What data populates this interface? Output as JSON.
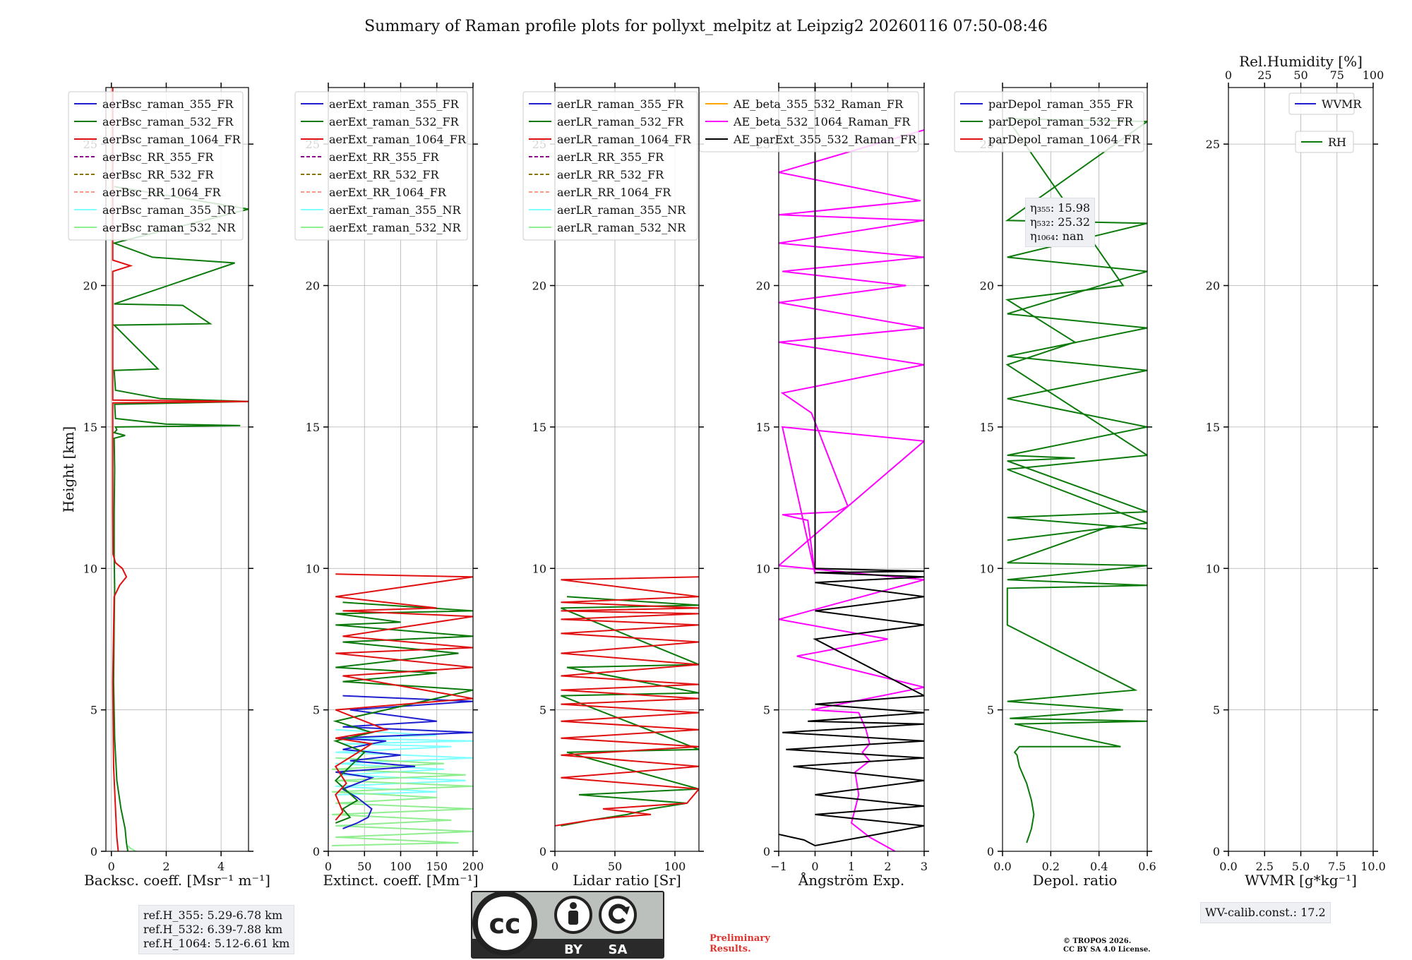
{
  "title": "Summary of Raman profile plots for pollyxt_melpitz at Leipzig2 20260116 07:50-08:46",
  "colors": {
    "blue": "#1f1fd0",
    "green": "#0b7a0b",
    "red": "#e01010",
    "purple": "#8b008b",
    "olive": "#8b7500",
    "salmon": "#ff9980",
    "cyan": "#7fffff",
    "lightgreen": "#90ee90",
    "orange": "#ffa500",
    "magenta": "#ff00ff",
    "black": "#000000"
  },
  "chart_data": [
    {
      "type": "line",
      "id": "bsc",
      "xlabel": "Backsc. coeff. [Msr⁻¹ m⁻¹]",
      "ylabel": "Height [km]",
      "xlim": [
        -0.2,
        5
      ],
      "ylim": [
        0,
        27
      ],
      "xticks": [
        0,
        2,
        4
      ],
      "xticklabels": [
        "0",
        "2",
        "4"
      ],
      "yticks": [
        0,
        5,
        10,
        15,
        20,
        25
      ],
      "yticklabels": [
        "0",
        "5",
        "10",
        "15",
        "20",
        "25"
      ],
      "legend": [
        "aerBsc_raman_355_FR",
        "aerBsc_raman_532_FR",
        "aerBsc_raman_1064_FR",
        "aerBsc_RR_355_FR",
        "aerBsc_RR_532_FR",
        "aerBsc_RR_1064_FR",
        "aerBsc_raman_355_NR",
        "aerBsc_raman_532_NR"
      ],
      "series": [
        {
          "name": "aerBsc_raman_532_FR",
          "style": "solid",
          "color": "green",
          "x": [
            0.6,
            0.55,
            0.5,
            0.35,
            0.2,
            0.12,
            0.08,
            0.1,
            0.12,
            0.1,
            0.1,
            0.12,
            0.1,
            0.5,
            0.1,
            0.2,
            0.15,
            4.7,
            2.0,
            0.15,
            0.12,
            5.0,
            1.8,
            0.15,
            0.1,
            1.7,
            0.1,
            3.6,
            2.6,
            0.1,
            4.5,
            3.0,
            1.5,
            0.1,
            5.0,
            0.1
          ],
          "y": [
            0.0,
            0.3,
            0.8,
            1.5,
            2.5,
            4.0,
            6.0,
            8.0,
            9.3,
            10.5,
            12.0,
            13.5,
            14.6,
            14.7,
            14.8,
            14.9,
            15.0,
            15.05,
            15.1,
            15.3,
            15.8,
            15.9,
            16.0,
            16.3,
            17.0,
            17.05,
            18.6,
            18.65,
            19.3,
            19.35,
            20.8,
            20.9,
            21.0,
            21.5,
            22.7,
            23.5
          ]
        },
        {
          "name": "aerBsc_raman_1064_FR",
          "style": "solid",
          "color": "red",
          "x": [
            0.25,
            0.2,
            0.15,
            0.08,
            0.05,
            0.1,
            0.3,
            0.55,
            0.4,
            0.15,
            0.06,
            0.05,
            0.05,
            5.0,
            0.05,
            0.05,
            0.7,
            0.05,
            0.05
          ],
          "y": [
            0.0,
            0.5,
            1.5,
            3.0,
            6.0,
            9.0,
            9.4,
            9.7,
            10.0,
            10.2,
            10.5,
            12.0,
            15.85,
            15.9,
            15.95,
            20.5,
            20.7,
            20.9,
            27.0
          ]
        },
        {
          "name": "aerBsc_raman_532_NR",
          "style": "solid",
          "color": "lightgreen",
          "x": [
            0.9,
            0.7,
            0.6
          ],
          "y": [
            0.0,
            0.1,
            0.2
          ]
        }
      ]
    },
    {
      "type": "line",
      "id": "ext",
      "xlabel": "Extinct. coeff. [Mm⁻¹]",
      "xlim": [
        0,
        200
      ],
      "ylim": [
        0,
        27
      ],
      "xticks": [
        0,
        50,
        100,
        150,
        200
      ],
      "xticklabels": [
        "0",
        "50",
        "100",
        "150",
        "200"
      ],
      "yticks": [
        0,
        5,
        10,
        15,
        20,
        25
      ],
      "yticklabels": [
        "0",
        "5",
        "10",
        "15",
        "20",
        "25"
      ],
      "legend": [
        "aerExt_raman_355_FR",
        "aerExt_raman_532_FR",
        "aerExt_raman_1064_FR",
        "aerExt_RR_355_FR",
        "aerExt_RR_532_FR",
        "aerExt_RR_1064_FR",
        "aerExt_raman_355_NR",
        "aerExt_raman_532_NR"
      ],
      "series": [
        {
          "name": "aerExt_raman_355_NR",
          "style": "solid",
          "color": "cyan",
          "x": [
            10,
            150,
            10,
            190,
            20,
            160,
            10,
            200,
            10,
            170,
            20,
            200,
            10,
            150,
            10
          ],
          "y": [
            2.0,
            2.1,
            2.3,
            2.5,
            2.7,
            2.9,
            3.1,
            3.3,
            3.5,
            3.7,
            3.8,
            3.9,
            4.0,
            4.1,
            4.3
          ]
        },
        {
          "name": "aerExt_raman_532_NR",
          "style": "solid",
          "color": "lightgreen",
          "x": [
            5,
            180,
            10,
            200,
            10,
            170,
            5,
            200,
            10,
            150,
            5,
            200,
            10,
            190,
            5,
            160,
            10
          ],
          "y": [
            0.2,
            0.3,
            0.5,
            0.7,
            0.9,
            1.1,
            1.3,
            1.5,
            1.7,
            1.9,
            2.1,
            2.3,
            2.5,
            2.7,
            2.9,
            3.1,
            3.3
          ]
        },
        {
          "name": "aerExt_raman_355_FR",
          "style": "solid",
          "color": "blue",
          "x": [
            20,
            40,
            55,
            60,
            40,
            20,
            60,
            10,
            120,
            30,
            100,
            20,
            80,
            10,
            200,
            20,
            150,
            30,
            200,
            20
          ],
          "y": [
            0.8,
            1.0,
            1.2,
            1.5,
            1.9,
            2.2,
            2.6,
            2.8,
            3.0,
            3.2,
            3.4,
            3.6,
            3.9,
            4.0,
            4.2,
            4.4,
            4.6,
            5.0,
            5.3,
            5.5
          ]
        },
        {
          "name": "aerExt_raman_532_FR",
          "style": "solid",
          "color": "green",
          "x": [
            10,
            30,
            20,
            40,
            10,
            50,
            10,
            60,
            10,
            200,
            20,
            150,
            10,
            180,
            20,
            200,
            10,
            100,
            10,
            200,
            20
          ],
          "y": [
            1.0,
            1.2,
            1.5,
            1.8,
            2.5,
            3.5,
            3.9,
            4.2,
            4.6,
            5.7,
            6.0,
            6.3,
            6.5,
            7.0,
            7.4,
            7.6,
            8.0,
            8.1,
            8.4,
            8.5,
            8.8
          ]
        },
        {
          "name": "aerExt_raman_1064_FR",
          "style": "solid",
          "color": "red",
          "x": [
            10,
            20,
            10,
            25,
            10,
            60,
            10,
            80,
            10,
            200,
            20,
            200,
            10,
            200,
            20,
            200,
            20,
            150,
            10,
            200,
            10
          ],
          "y": [
            1.1,
            1.4,
            2.0,
            2.4,
            3.0,
            3.8,
            4.0,
            4.3,
            5.0,
            5.4,
            6.2,
            6.5,
            7.0,
            7.2,
            7.6,
            8.3,
            8.5,
            8.6,
            9.0,
            9.7,
            9.8
          ]
        }
      ]
    },
    {
      "type": "line",
      "id": "lr",
      "xlabel": "Lidar ratio [Sr]",
      "xlim": [
        0,
        120
      ],
      "ylim": [
        0,
        27
      ],
      "xticks": [
        0,
        50,
        100
      ],
      "xticklabels": [
        "0",
        "50",
        "100"
      ],
      "yticks": [
        0,
        5,
        10,
        15,
        20,
        25
      ],
      "yticklabels": [
        "0",
        "5",
        "10",
        "15",
        "20",
        "25"
      ],
      "legend": [
        "aerLR_raman_355_FR",
        "aerLR_raman_532_FR",
        "aerLR_raman_1064_FR",
        "aerLR_RR_355_FR",
        "aerLR_RR_532_FR",
        "aerLR_RR_1064_FR",
        "aerLR_raman_355_NR",
        "aerLR_raman_532_NR"
      ],
      "series": [
        {
          "name": "aerLR_raman_532_FR",
          "style": "solid",
          "color": "green",
          "x": [
            5,
            30,
            60,
            80,
            110,
            20,
            120,
            10,
            120,
            5,
            120,
            10,
            120,
            5,
            120,
            10
          ],
          "y": [
            0.9,
            1.1,
            1.3,
            1.5,
            1.7,
            2.0,
            2.2,
            3.5,
            3.6,
            5.5,
            5.6,
            6.5,
            6.6,
            8.6,
            8.7,
            9.0
          ]
        },
        {
          "name": "aerLR_raman_1064_FR",
          "style": "solid",
          "color": "red",
          "x": [
            0,
            30,
            50,
            80,
            40,
            110,
            120,
            5,
            120,
            5,
            120,
            5,
            120,
            5,
            120,
            5,
            120,
            5,
            120,
            5,
            120,
            5,
            120,
            5,
            120,
            5,
            120,
            5,
            120,
            5,
            120,
            5,
            120
          ],
          "y": [
            0.9,
            1.1,
            1.2,
            1.3,
            1.5,
            1.7,
            2.2,
            2.6,
            3.0,
            3.4,
            3.7,
            4.0,
            4.3,
            4.6,
            4.9,
            5.2,
            5.4,
            5.7,
            5.9,
            6.2,
            6.6,
            7.0,
            7.4,
            7.7,
            8.0,
            8.2,
            8.4,
            8.5,
            8.6,
            8.8,
            9.0,
            9.6,
            9.7
          ]
        }
      ]
    },
    {
      "type": "line",
      "id": "ae",
      "xlabel": "Ångström Exp.",
      "xlim": [
        -1,
        3
      ],
      "ylim": [
        0,
        27
      ],
      "xticks": [
        -1,
        0,
        1,
        2,
        3
      ],
      "xticklabels": [
        "−1",
        "0",
        "1",
        "2",
        "3"
      ],
      "yticks": [
        0,
        5,
        10,
        15,
        20,
        25
      ],
      "yticklabels": [
        "0",
        "5",
        "10",
        "15",
        "20",
        "25"
      ],
      "legend": [
        "AE_beta_355_532_Raman_FR",
        "AE_beta_532_1064_Raman_FR",
        "AE_parExt_355_532_Raman_FR"
      ],
      "series": [
        {
          "name": "AE_beta_532_1064_Raman_FR",
          "style": "solid",
          "color": "magenta",
          "x": [
            2.2,
            1.5,
            1.0,
            1.2,
            1.1,
            1.5,
            1.3,
            1.5,
            1.4,
            1.2,
            -0.1,
            3.0,
            -0.5,
            2.0,
            -1.0,
            3.0,
            -1.0,
            3.0,
            -0.9,
            0.0,
            -0.2,
            -0.9,
            0.6,
            0.9,
            -0.1,
            -0.9,
            3.0,
            -1.0,
            3.0,
            -1.0,
            2.5,
            -0.9,
            3.0,
            -1.0,
            3.0,
            -1.0,
            2.9,
            -1.0,
            3.0
          ],
          "y": [
            0.0,
            0.5,
            1.0,
            2.0,
            2.8,
            3.2,
            3.5,
            3.8,
            4.3,
            4.9,
            5.0,
            5.8,
            6.9,
            7.5,
            8.2,
            9.6,
            10.1,
            14.5,
            15.0,
            9.8,
            11.7,
            11.9,
            12.0,
            12.2,
            15.5,
            16.2,
            17.2,
            18.0,
            18.5,
            19.4,
            20.0,
            20.5,
            21.0,
            21.5,
            22.3,
            22.5,
            23.0,
            24.0,
            25.5
          ]
        },
        {
          "name": "AE_parExt_355_532_Raman_FR",
          "style": "solid",
          "color": "black",
          "x": [
            -1.0,
            -0.3,
            0.0,
            3.0,
            0.0,
            3.0,
            0.0,
            3.0,
            -0.6,
            3.0,
            -0.8,
            3.0,
            -0.9,
            3.0,
            -0.2,
            3.0,
            0.0,
            3.0,
            0.0,
            3.0,
            0.0,
            3.0,
            0.0,
            3.0,
            0.0,
            3.0,
            0.0,
            0.0
          ],
          "y": [
            0.6,
            0.4,
            0.2,
            0.9,
            1.3,
            1.6,
            2.0,
            2.5,
            3.0,
            3.3,
            3.6,
            3.9,
            4.2,
            4.5,
            4.6,
            4.9,
            5.2,
            5.5,
            7.5,
            8.0,
            8.5,
            9.0,
            9.5,
            9.7,
            9.85,
            9.9,
            10.0,
            27.0
          ]
        }
      ]
    },
    {
      "type": "line",
      "id": "depol",
      "xlabel": "Depol. ratio",
      "xlim": [
        0,
        0.6
      ],
      "ylim": [
        0,
        27
      ],
      "xticks": [
        0,
        0.2,
        0.4,
        0.6
      ],
      "xticklabels": [
        "0.0",
        "0.2",
        "0.4",
        "0.6"
      ],
      "yticks": [
        0,
        5,
        10,
        15,
        20,
        25
      ],
      "yticklabels": [
        "0",
        "5",
        "10",
        "15",
        "20",
        "25"
      ],
      "legend": [
        "parDepol_raman_355_FR",
        "parDepol_raman_532_FR",
        "parDepol_raman_1064_FR"
      ],
      "series": [
        {
          "name": "parDepol_raman_532_FR",
          "style": "solid",
          "color": "green",
          "x": [
            0.1,
            0.12,
            0.13,
            0.12,
            0.1,
            0.07,
            0.06,
            0.05,
            0.07,
            0.49,
            0.05,
            0.6,
            0.03,
            0.5,
            0.02,
            0.55,
            0.02,
            0.02,
            0.6,
            0.02,
            0.6,
            0.02,
            0.45,
            0.6,
            0.02,
            0.6,
            0.02,
            0.3,
            0.02,
            0.6,
            0.02,
            0.6,
            0.02,
            0.6,
            0.02,
            0.6,
            0.02,
            0.6,
            0.02,
            0.6,
            0.02,
            0.5,
            0.02,
            0.3,
            0.02,
            0.6,
            0.02,
            0.6,
            0.02
          ],
          "y": [
            0.3,
            0.8,
            1.3,
            1.8,
            2.4,
            3.0,
            3.4,
            3.5,
            3.7,
            3.7,
            4.5,
            4.6,
            4.7,
            5.0,
            5.3,
            5.7,
            8.0,
            9.3,
            9.4,
            9.6,
            10.1,
            10.2,
            11.5,
            11.4,
            11.8,
            12.0,
            13.8,
            13.9,
            14.0,
            15.0,
            16.0,
            17.0,
            17.5,
            18.5,
            19.0,
            20.5,
            21.0,
            22.2,
            22.3,
            25.8,
            25.9,
            20.0,
            19.5,
            18.0,
            17.2,
            14.0,
            13.5,
            11.6,
            11.0
          ]
        }
      ]
    },
    {
      "type": "line",
      "id": "wv",
      "xlabel": "WVMR [g*kg⁻¹]",
      "top_xlabel": "Rel.Humidity [%]",
      "xlim": [
        0,
        10
      ],
      "ylim": [
        0,
        27
      ],
      "xticks": [
        0,
        2.5,
        5,
        7.5,
        10
      ],
      "xticklabels": [
        "0.0",
        "2.5",
        "5.0",
        "7.5",
        "10.0"
      ],
      "top_xticklabels": [
        "0",
        "25",
        "50",
        "75",
        "100"
      ],
      "yticks": [
        0,
        5,
        10,
        15,
        20,
        25
      ],
      "yticklabels": [
        "0",
        "5",
        "10",
        "15",
        "20",
        "25"
      ],
      "legend": [
        "WVMR",
        "RH"
      ],
      "series": []
    }
  ],
  "eta_box": [
    "η₃₅₅: 15.98",
    "η₅₃₂: 25.32",
    "η₁₀₆₄: nan"
  ],
  "ref_box": [
    "ref.H_355: 5.29-6.78 km",
    "ref.H_532: 6.39-7.88 km",
    "ref.H_1064: 5.12-6.61 km"
  ],
  "wv_calib": "WV-calib.const.: 17.2",
  "license_badge": {
    "by": "BY",
    "sa": "SA"
  },
  "preliminary": [
    "Preliminary",
    "Results."
  ],
  "copyright": [
    "© TROPOS 2026.",
    "CC BY SA 4.0 License."
  ]
}
